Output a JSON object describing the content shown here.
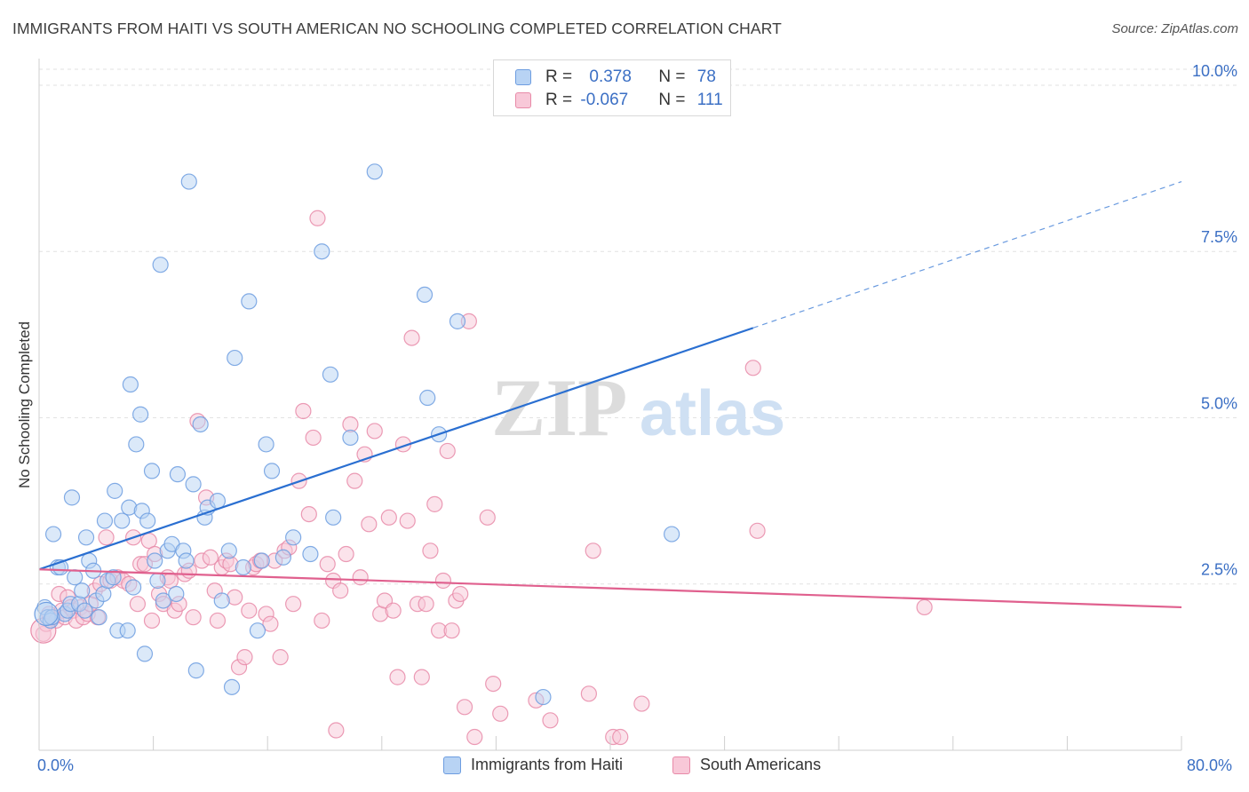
{
  "title": "IMMIGRANTS FROM HAITI VS SOUTH AMERICAN NO SCHOOLING COMPLETED CORRELATION CHART",
  "source": "Source: ZipAtlas.com",
  "watermark": {
    "zip": "ZIP",
    "atlas": "atlas"
  },
  "legend": {
    "rows": [
      {
        "r_label": "R = ",
        "r_value": "0.378",
        "n_label": "N = ",
        "n_value": "78"
      },
      {
        "r_label": "R = ",
        "r_value": "-0.067",
        "n_label": "N = ",
        "n_value": "111"
      }
    ]
  },
  "bottom_legend": {
    "series1": "Immigrants from Haiti",
    "series2": "South Americans"
  },
  "chart_data": {
    "type": "scatter",
    "title": "IMMIGRANTS FROM HAITI VS SOUTH AMERICAN NO SCHOOLING COMPLETED CORRELATION CHART",
    "xlabel": "",
    "ylabel": "No Schooling Completed",
    "xlim": [
      0,
      80
    ],
    "ylim": [
      0,
      10.4
    ],
    "x_tick_labels": [
      "0.0%",
      "80.0%"
    ],
    "y_ticks": [
      2.5,
      5.0,
      7.5,
      10.0
    ],
    "y_tick_labels": [
      "2.5%",
      "5.0%",
      "7.5%",
      "10.0%"
    ],
    "grid": true,
    "colors": {
      "blue": "#6d9de0",
      "blue_fill": "#b8d3f4",
      "blue_line": "#2a6fd1",
      "pink": "#e88aa8",
      "pink_fill": "#f8c8d8",
      "pink_line": "#e0608e",
      "axis_text": "#3b6fc4"
    },
    "series": [
      {
        "name": "Immigrants from Haiti",
        "color": "#6d9de0",
        "trend": {
          "x0": 0,
          "y0": 2.72,
          "x1": 50,
          "y1": 6.35,
          "dashed_to_x": 80,
          "dashed_to_y": 8.55
        },
        "points": [
          [
            0.4,
            2.15
          ],
          [
            0.6,
            2.0
          ],
          [
            0.8,
            1.95
          ],
          [
            1.0,
            3.25
          ],
          [
            1.3,
            2.75
          ],
          [
            1.5,
            2.75
          ],
          [
            1.8,
            2.05
          ],
          [
            2.0,
            2.1
          ],
          [
            2.2,
            2.2
          ],
          [
            2.3,
            3.8
          ],
          [
            2.5,
            2.6
          ],
          [
            2.8,
            2.2
          ],
          [
            3.0,
            2.4
          ],
          [
            3.2,
            2.1
          ],
          [
            3.3,
            3.2
          ],
          [
            3.5,
            2.85
          ],
          [
            3.8,
            2.7
          ],
          [
            4.0,
            2.25
          ],
          [
            4.2,
            2.0
          ],
          [
            4.5,
            2.35
          ],
          [
            4.6,
            3.45
          ],
          [
            4.8,
            2.55
          ],
          [
            5.2,
            2.6
          ],
          [
            5.3,
            3.9
          ],
          [
            5.5,
            1.8
          ],
          [
            5.8,
            3.45
          ],
          [
            6.2,
            1.8
          ],
          [
            6.3,
            3.65
          ],
          [
            6.4,
            5.5
          ],
          [
            6.6,
            2.45
          ],
          [
            6.8,
            4.6
          ],
          [
            7.1,
            5.05
          ],
          [
            7.2,
            3.6
          ],
          [
            7.4,
            1.45
          ],
          [
            7.6,
            3.45
          ],
          [
            7.9,
            4.2
          ],
          [
            8.1,
            2.85
          ],
          [
            8.3,
            2.55
          ],
          [
            8.5,
            7.3
          ],
          [
            8.7,
            2.25
          ],
          [
            9.0,
            3.0
          ],
          [
            9.3,
            3.1
          ],
          [
            9.6,
            2.35
          ],
          [
            9.7,
            4.15
          ],
          [
            10.1,
            3.0
          ],
          [
            10.3,
            2.85
          ],
          [
            10.5,
            8.55
          ],
          [
            10.8,
            4.0
          ],
          [
            11.0,
            1.2
          ],
          [
            11.3,
            4.9
          ],
          [
            11.6,
            3.5
          ],
          [
            11.8,
            3.65
          ],
          [
            12.5,
            3.75
          ],
          [
            12.8,
            2.25
          ],
          [
            13.3,
            3.0
          ],
          [
            13.5,
            0.95
          ],
          [
            13.7,
            5.9
          ],
          [
            14.3,
            2.75
          ],
          [
            14.7,
            6.75
          ],
          [
            15.3,
            1.8
          ],
          [
            15.6,
            2.85
          ],
          [
            15.9,
            4.6
          ],
          [
            16.3,
            4.2
          ],
          [
            17.1,
            2.9
          ],
          [
            17.8,
            3.2
          ],
          [
            19.0,
            2.95
          ],
          [
            19.8,
            7.5
          ],
          [
            20.4,
            5.65
          ],
          [
            20.6,
            3.5
          ],
          [
            21.8,
            4.7
          ],
          [
            23.5,
            8.7
          ],
          [
            27.0,
            6.85
          ],
          [
            27.2,
            5.3
          ],
          [
            28.0,
            4.75
          ],
          [
            29.3,
            6.45
          ],
          [
            35.3,
            0.8
          ],
          [
            44.3,
            3.25
          ],
          [
            0.9,
            2.0
          ]
        ]
      },
      {
        "name": "South Americans",
        "color": "#e88aa8",
        "trend": {
          "x0": 0,
          "y0": 2.72,
          "x1": 80,
          "y1": 2.15
        },
        "points": [
          [
            0.3,
            1.75
          ],
          [
            0.5,
            1.9
          ],
          [
            0.7,
            2.05
          ],
          [
            1.0,
            2.0
          ],
          [
            1.2,
            1.95
          ],
          [
            1.4,
            2.35
          ],
          [
            1.6,
            2.1
          ],
          [
            1.8,
            2.0
          ],
          [
            2.0,
            2.3
          ],
          [
            2.2,
            2.15
          ],
          [
            2.4,
            2.1
          ],
          [
            2.6,
            1.95
          ],
          [
            2.9,
            2.15
          ],
          [
            3.1,
            2.0
          ],
          [
            3.4,
            2.05
          ],
          [
            3.6,
            2.2
          ],
          [
            3.9,
            2.4
          ],
          [
            4.1,
            2.0
          ],
          [
            4.3,
            2.5
          ],
          [
            4.7,
            3.2
          ],
          [
            5.0,
            2.55
          ],
          [
            5.5,
            2.6
          ],
          [
            5.9,
            2.55
          ],
          [
            6.3,
            2.5
          ],
          [
            6.6,
            3.2
          ],
          [
            6.9,
            2.2
          ],
          [
            7.1,
            2.8
          ],
          [
            7.4,
            2.8
          ],
          [
            7.7,
            3.15
          ],
          [
            7.9,
            1.95
          ],
          [
            8.1,
            2.95
          ],
          [
            8.4,
            2.35
          ],
          [
            8.7,
            2.2
          ],
          [
            9.0,
            2.6
          ],
          [
            9.2,
            2.55
          ],
          [
            9.5,
            2.1
          ],
          [
            9.8,
            2.2
          ],
          [
            10.2,
            2.65
          ],
          [
            10.5,
            2.7
          ],
          [
            10.8,
            2.0
          ],
          [
            11.1,
            4.95
          ],
          [
            11.4,
            2.85
          ],
          [
            11.7,
            3.8
          ],
          [
            12.0,
            2.9
          ],
          [
            12.3,
            2.4
          ],
          [
            12.5,
            1.95
          ],
          [
            12.8,
            2.75
          ],
          [
            13.1,
            2.85
          ],
          [
            13.4,
            2.8
          ],
          [
            13.7,
            2.3
          ],
          [
            14.0,
            1.25
          ],
          [
            14.4,
            1.4
          ],
          [
            14.7,
            2.1
          ],
          [
            15.0,
            2.75
          ],
          [
            15.2,
            2.8
          ],
          [
            15.5,
            2.85
          ],
          [
            15.9,
            2.05
          ],
          [
            16.2,
            1.9
          ],
          [
            16.5,
            2.85
          ],
          [
            16.9,
            1.4
          ],
          [
            17.2,
            3.0
          ],
          [
            17.5,
            3.05
          ],
          [
            17.8,
            2.2
          ],
          [
            18.2,
            4.05
          ],
          [
            18.5,
            5.1
          ],
          [
            18.9,
            3.55
          ],
          [
            19.2,
            4.7
          ],
          [
            19.5,
            8.0
          ],
          [
            19.8,
            1.95
          ],
          [
            20.2,
            2.8
          ],
          [
            20.6,
            2.55
          ],
          [
            20.8,
            0.3
          ],
          [
            21.1,
            2.4
          ],
          [
            21.5,
            2.95
          ],
          [
            21.8,
            4.9
          ],
          [
            22.1,
            4.05
          ],
          [
            22.5,
            2.6
          ],
          [
            22.8,
            4.45
          ],
          [
            23.1,
            3.4
          ],
          [
            23.5,
            4.8
          ],
          [
            23.9,
            2.05
          ],
          [
            24.2,
            2.25
          ],
          [
            24.5,
            3.5
          ],
          [
            24.8,
            2.1
          ],
          [
            25.1,
            1.1
          ],
          [
            25.5,
            4.6
          ],
          [
            25.8,
            3.45
          ],
          [
            26.1,
            6.2
          ],
          [
            26.5,
            2.2
          ],
          [
            26.8,
            1.1
          ],
          [
            27.1,
            2.2
          ],
          [
            27.4,
            3.0
          ],
          [
            27.7,
            3.7
          ],
          [
            28.0,
            1.8
          ],
          [
            28.3,
            2.55
          ],
          [
            28.6,
            4.5
          ],
          [
            28.9,
            1.8
          ],
          [
            29.2,
            2.25
          ],
          [
            29.5,
            2.35
          ],
          [
            29.8,
            0.65
          ],
          [
            30.1,
            6.45
          ],
          [
            30.5,
            0.2
          ],
          [
            31.4,
            3.5
          ],
          [
            31.8,
            1.0
          ],
          [
            32.3,
            0.55
          ],
          [
            34.8,
            0.75
          ],
          [
            35.8,
            0.45
          ],
          [
            38.5,
            0.85
          ],
          [
            38.8,
            3.0
          ],
          [
            40.2,
            0.2
          ],
          [
            40.7,
            0.2
          ],
          [
            42.2,
            0.7
          ],
          [
            50.0,
            5.75
          ],
          [
            50.3,
            3.3
          ],
          [
            62.0,
            2.15
          ]
        ]
      }
    ]
  }
}
